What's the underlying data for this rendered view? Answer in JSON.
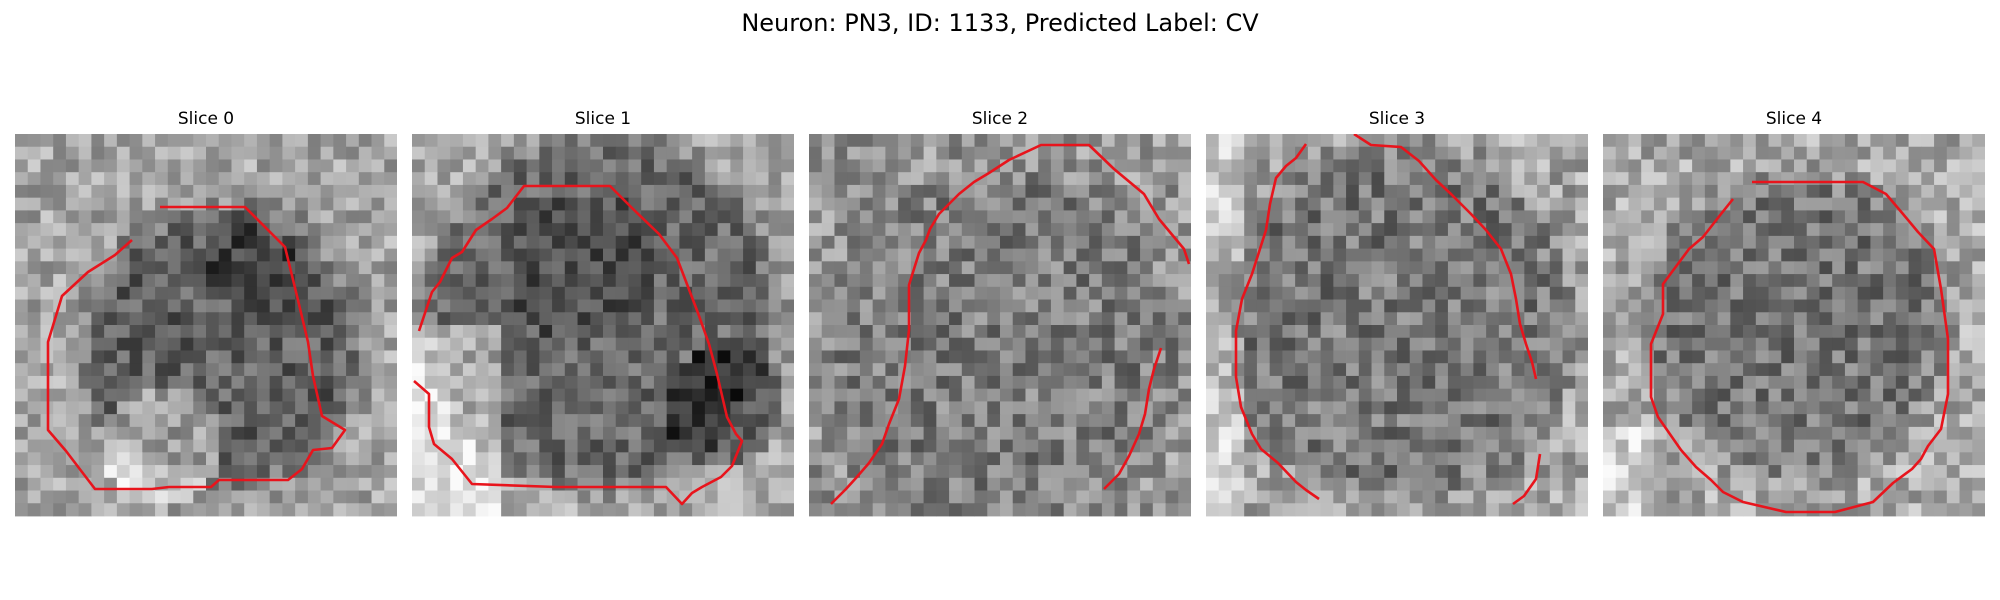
{
  "figure": {
    "title": "Neuron: PN3, ID: 1133, Predicted Label: CV"
  },
  "panels": [
    {
      "title": "Slice 0"
    },
    {
      "title": "Slice 1"
    },
    {
      "title": "Slice 2"
    },
    {
      "title": "Slice 3"
    },
    {
      "title": "Slice 4"
    }
  ],
  "style": {
    "contour_color": "#e8141c"
  }
}
